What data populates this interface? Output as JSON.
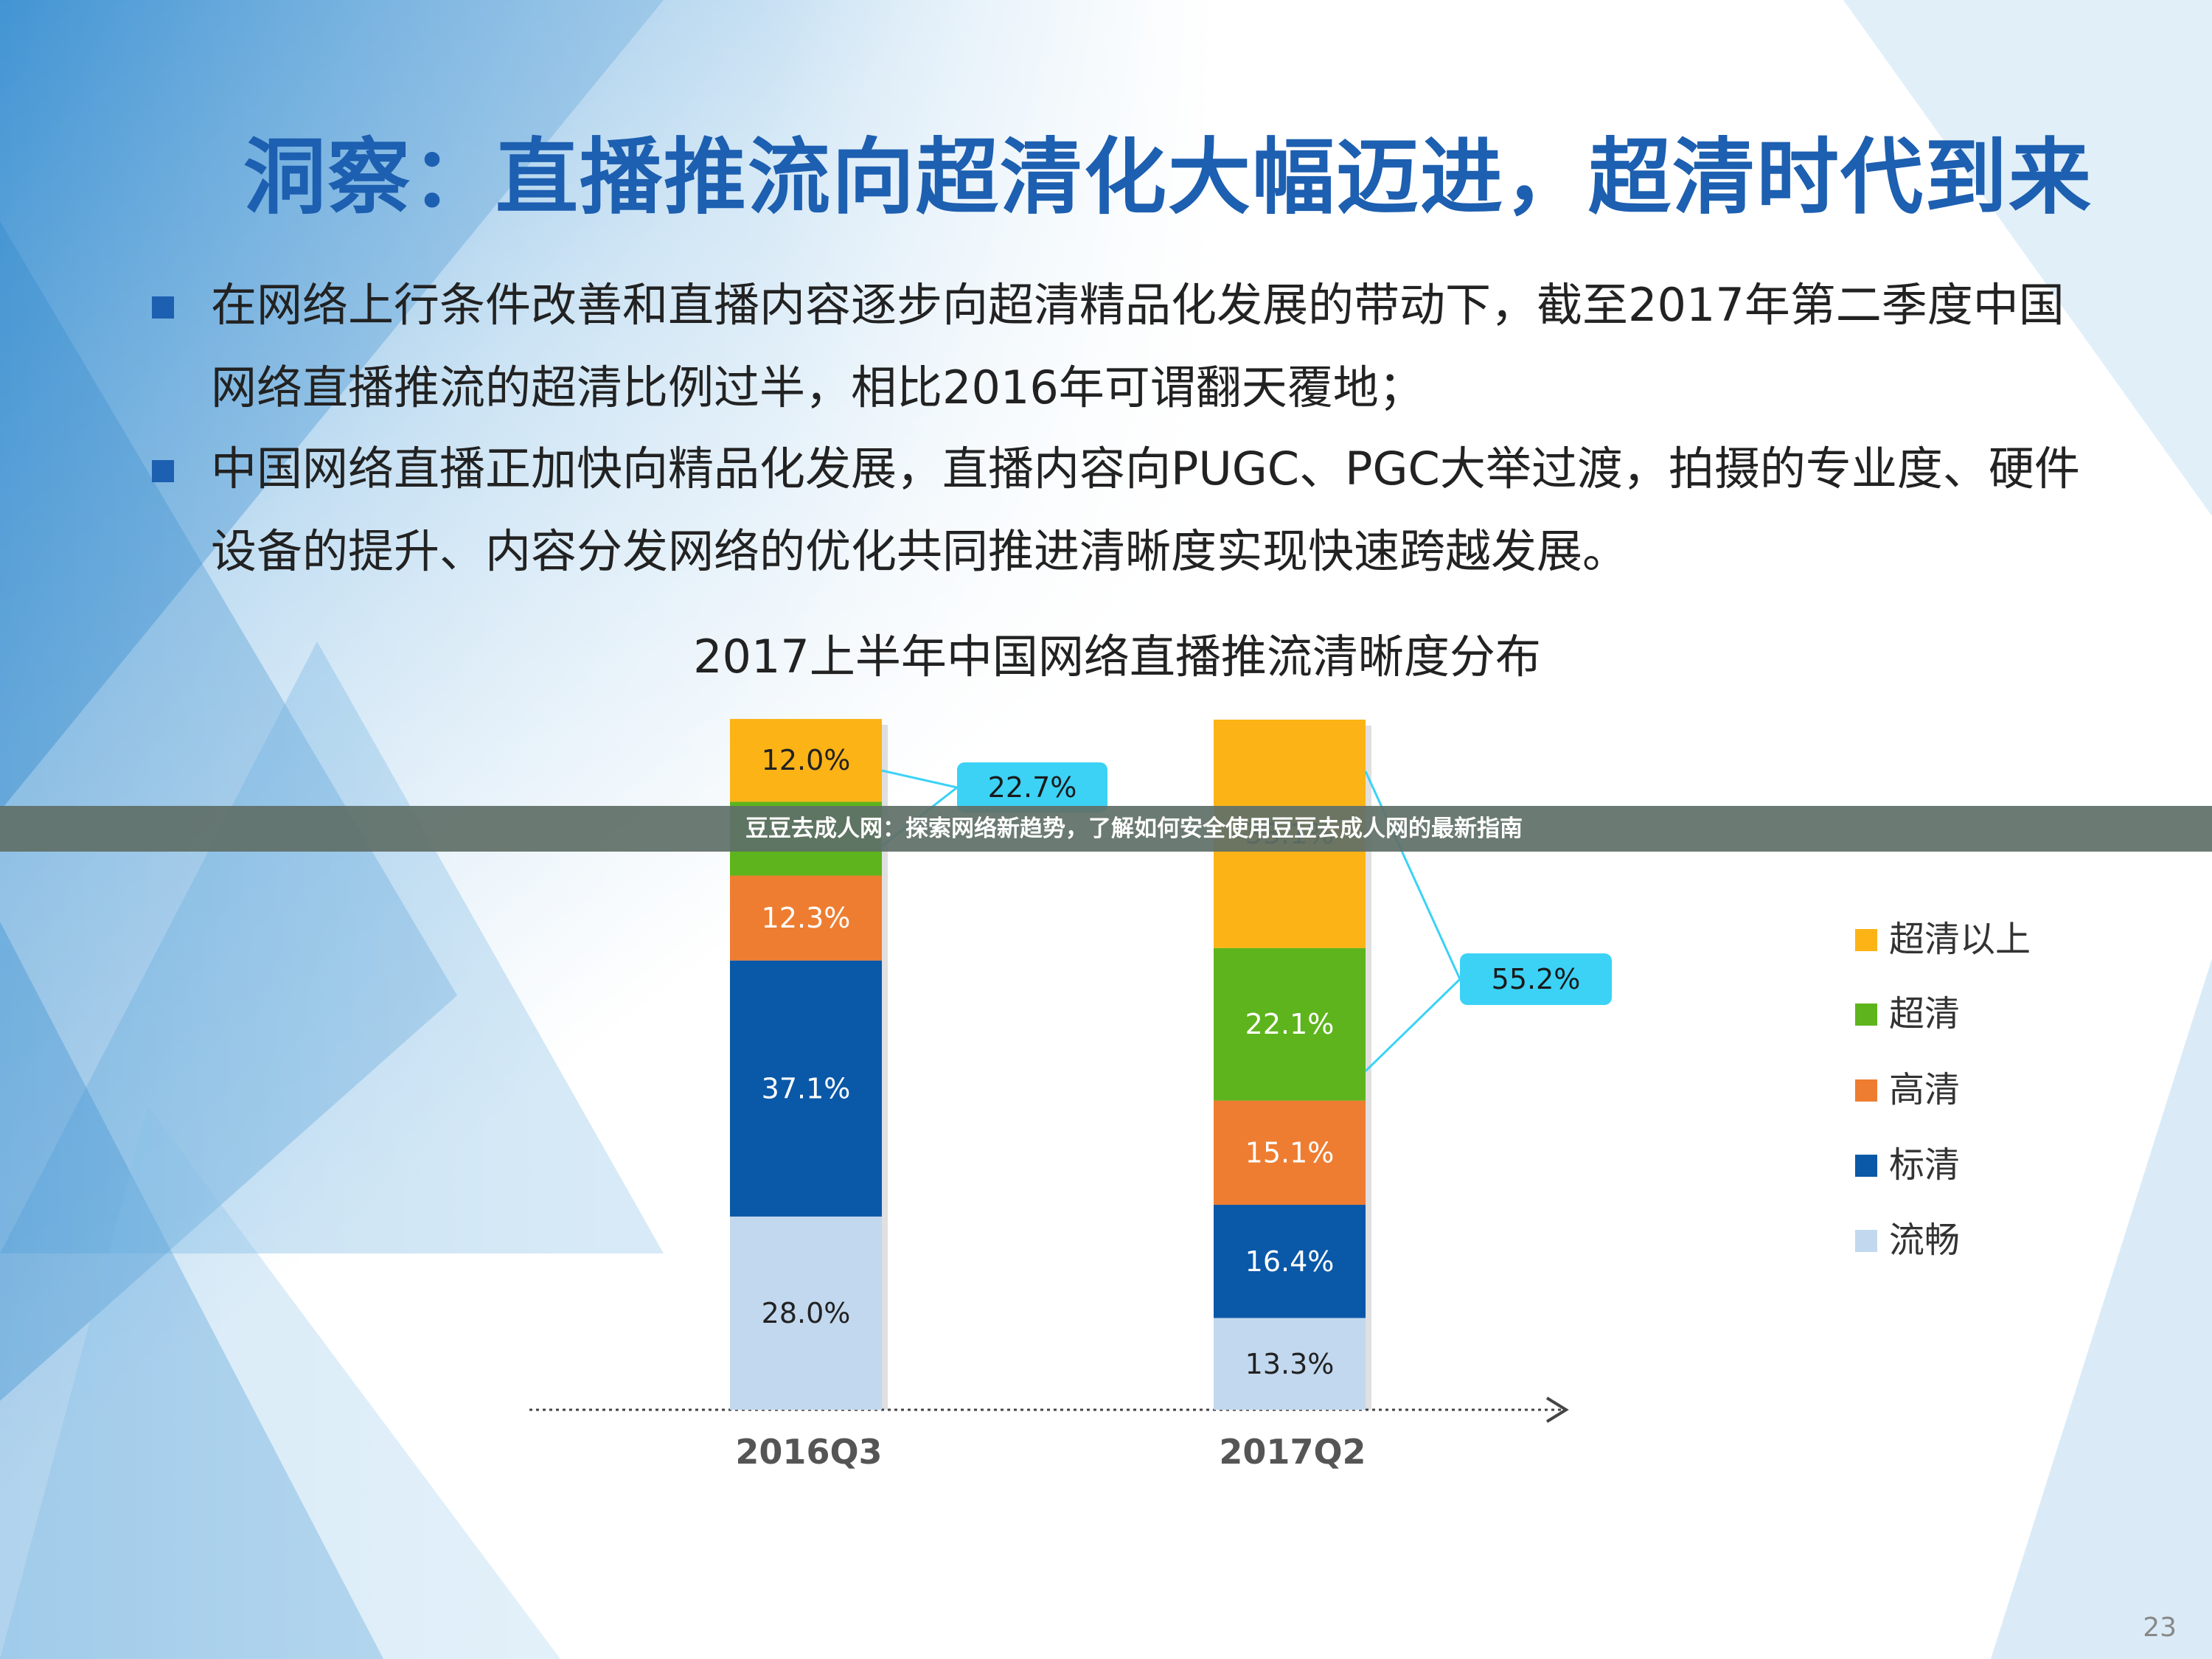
{
  "slide": {
    "title": "洞察：直播推流向超清化大幅迈进，超清时代到来",
    "bullets": [
      "在网络上行条件改善和直播内容逐步向超清精品化发展的带动下，截至2017年第二季度中国网络直播推流的超清比例过半，相比2016年可谓翻天覆地；",
      "中国网络直播正加快向精品化发展，直播内容向PUGC、PGC大举过渡，拍摄的专业度、硬件设备的提升、内容分发网络的优化共同推进清晰度实现快速跨越发展。"
    ],
    "page_number": "23"
  },
  "banner": {
    "text": "豆豆去成人网：探索网络新趋势，了解如何安全使用豆豆去成人网的最新指南"
  },
  "chart_data": {
    "type": "bar",
    "stacked": true,
    "title": "2017上半年中国网络直播推流清晰度分布",
    "categories": [
      "2016Q3",
      "2017Q2"
    ],
    "series": [
      {
        "name": "流畅",
        "color": "#c2d8ee",
        "values": [
          28.0,
          13.3
        ]
      },
      {
        "name": "标清",
        "color": "#0a58a8",
        "values": [
          37.1,
          16.4
        ]
      },
      {
        "name": "高清",
        "color": "#ee7d31",
        "values": [
          12.3,
          15.1
        ]
      },
      {
        "name": "超清",
        "color": "#5eb41c",
        "values": [
          10.7,
          22.1
        ]
      },
      {
        "name": "超清以上",
        "color": "#fbb316",
        "values": [
          12.0,
          33.1
        ]
      }
    ],
    "value_labels": [
      [
        "28.0%",
        "13.3%"
      ],
      [
        "37.1%",
        "16.4%"
      ],
      [
        "12.3%",
        "15.1%"
      ],
      [
        "",
        "22.1%"
      ],
      [
        "12.0%",
        "33.1%"
      ]
    ],
    "callouts": [
      {
        "category_index": 0,
        "from_series": 3,
        "to_series": 4,
        "label": "22.7%"
      },
      {
        "category_index": 1,
        "from_series": 3,
        "to_series": 4,
        "label": "55.2%"
      }
    ],
    "legend_order": [
      "超清以上",
      "超清",
      "高清",
      "标清",
      "流畅"
    ],
    "legend_position": "right",
    "ylim": [
      0,
      100
    ],
    "grid": false,
    "colors": {
      "callout": "#3bd2f6",
      "axis": "#444444"
    }
  }
}
